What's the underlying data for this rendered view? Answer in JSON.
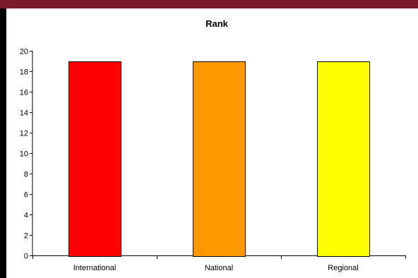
{
  "chart_data": {
    "type": "bar",
    "title": "Rank",
    "xlabel": "",
    "ylabel": "",
    "categories": [
      "International",
      "National",
      "Regional"
    ],
    "values": [
      19,
      19,
      19
    ],
    "ylim": [
      0,
      20
    ],
    "yticks": [
      0,
      2,
      4,
      6,
      8,
      10,
      12,
      14,
      16,
      18,
      20
    ],
    "bar_colors": [
      "#ff0000",
      "#ff9900",
      "#ffff00"
    ],
    "grid": false,
    "legend": "none"
  }
}
